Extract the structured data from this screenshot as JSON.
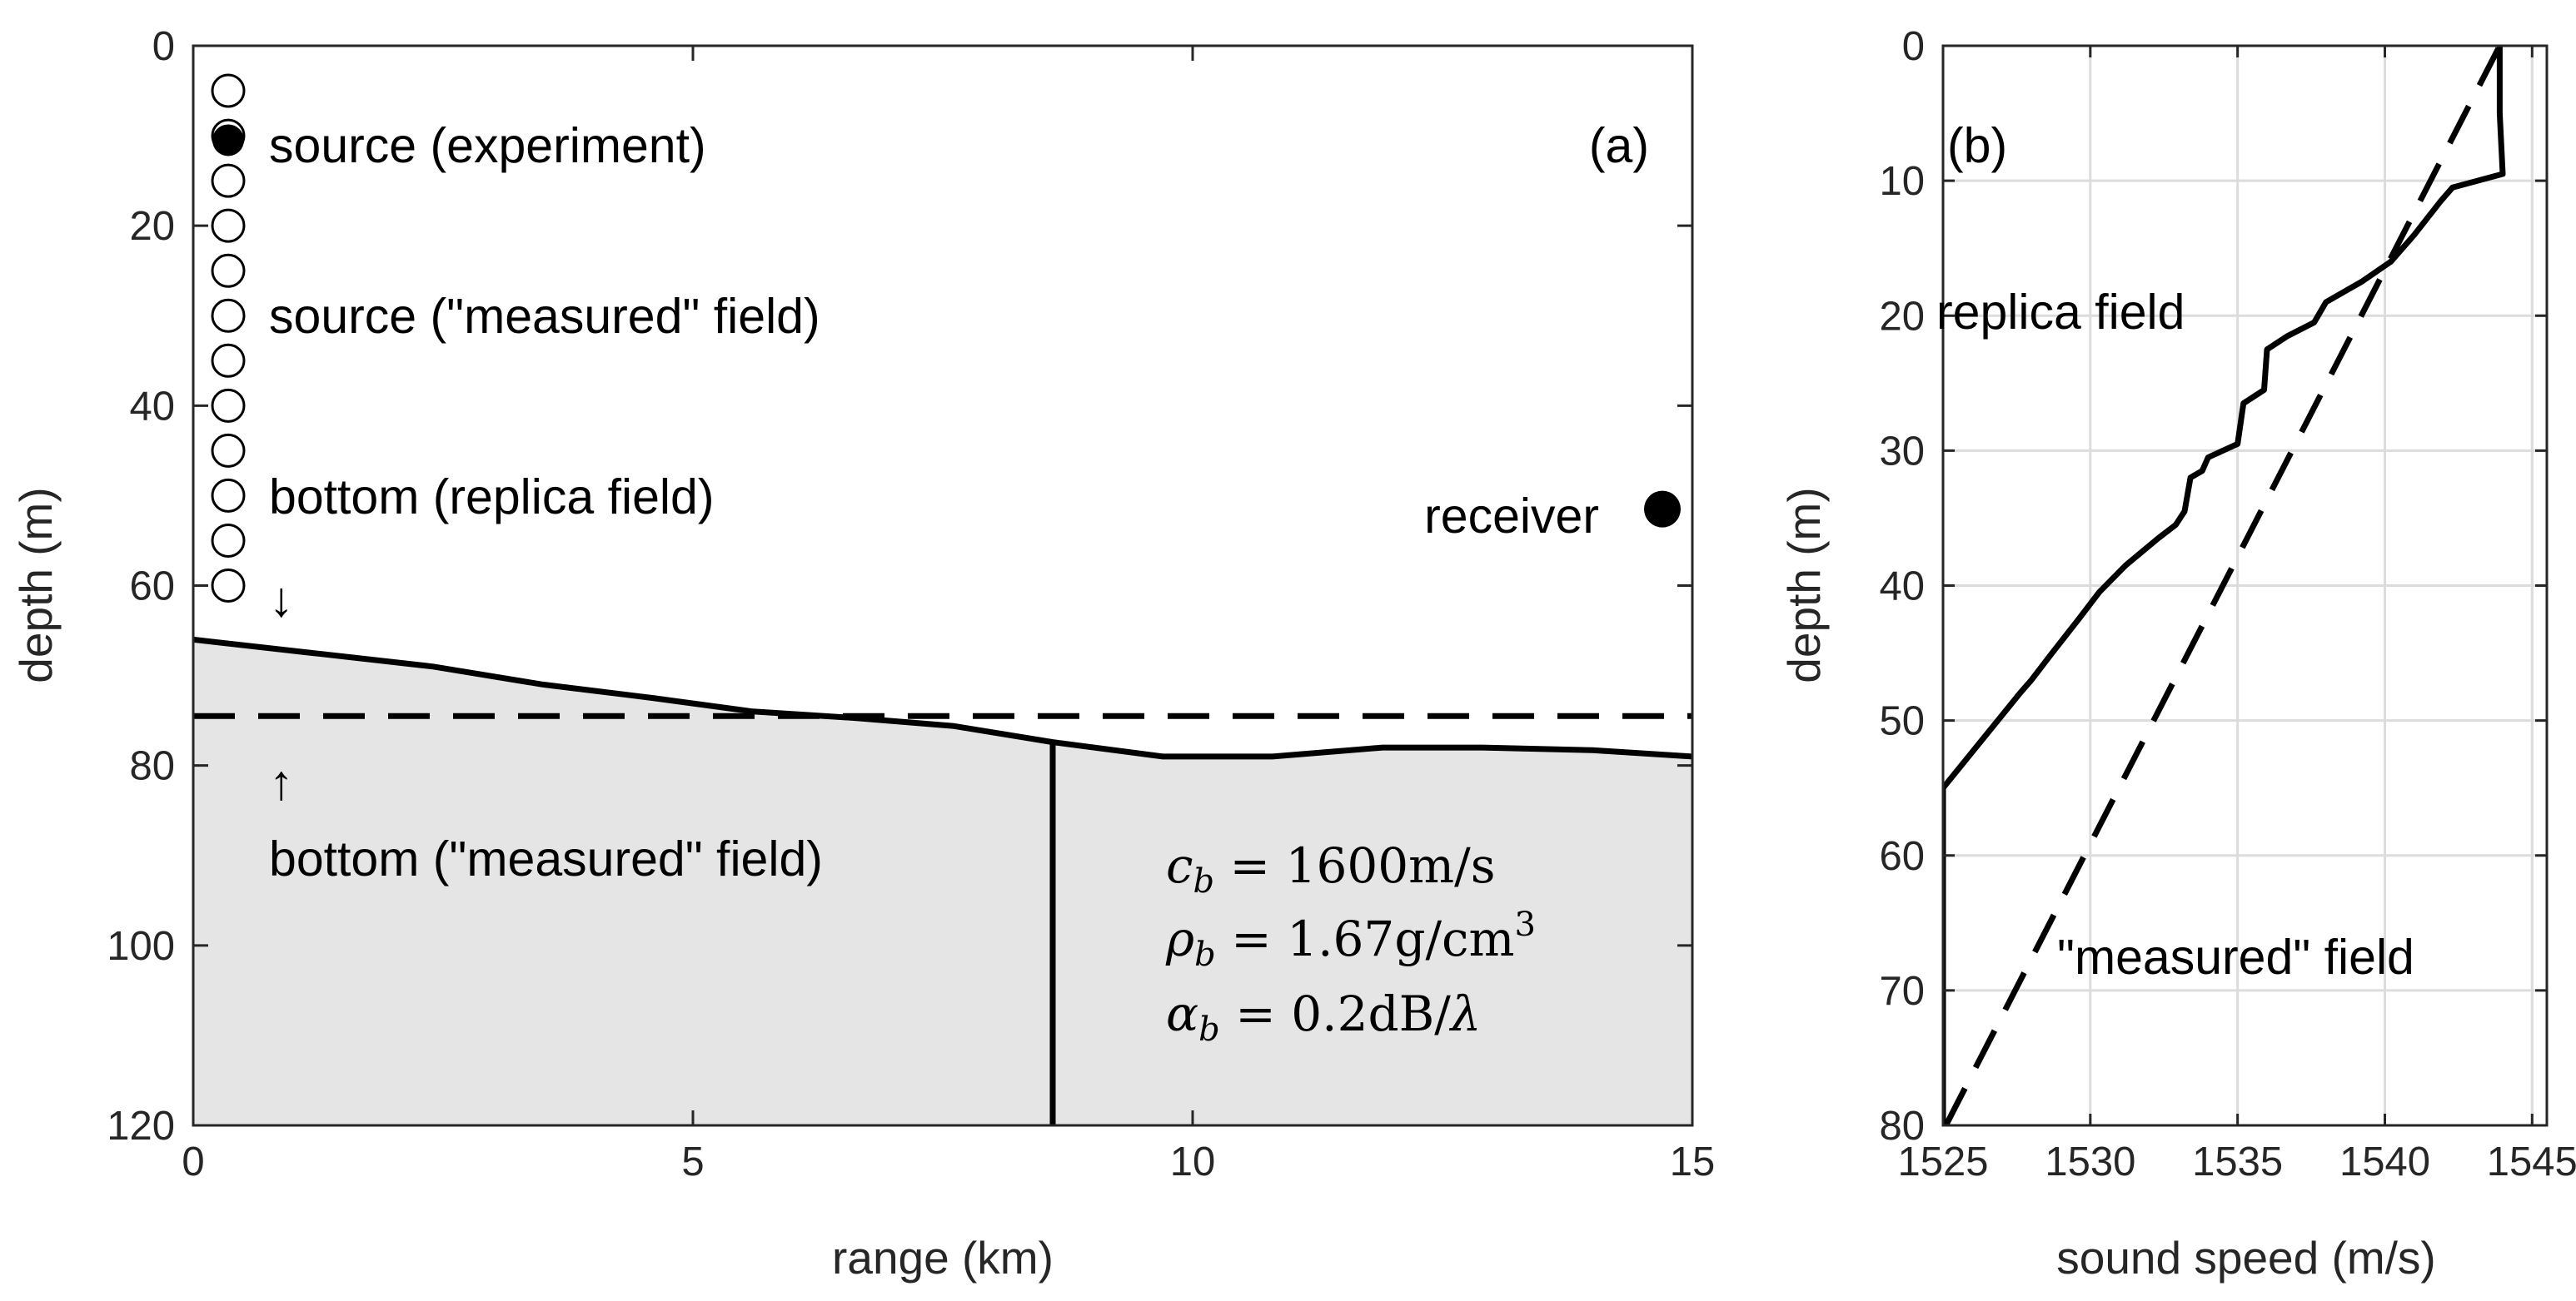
{
  "chart_data": [
    {
      "id": "a",
      "type": "line",
      "panel_label": "(a)",
      "xlabel": "range (km)",
      "ylabel": "depth (m)",
      "xlim": [
        0,
        15
      ],
      "ylim": [
        0,
        120
      ],
      "y_reversed": true,
      "xticks": [
        0,
        5,
        10,
        15
      ],
      "yticks": [
        0,
        20,
        40,
        60,
        80,
        100,
        120
      ],
      "grid": false,
      "series": [
        {
          "name": "bottom (replica field)",
          "style": "solid",
          "fill": "#e5e5e5",
          "x": [
            0,
            1.2,
            2.4,
            3.5,
            4.6,
            5.6,
            6.6,
            7.6,
            8.6,
            9.7,
            10.8,
            11.9,
            12.9,
            14.0,
            15.0
          ],
          "y": [
            66,
            67.5,
            69,
            71,
            72.5,
            74,
            74.7,
            75.6,
            77.4,
            79,
            79,
            78,
            78,
            78.3,
            79
          ]
        },
        {
          "name": "bottom (\"measured\" field)",
          "style": "dashed",
          "x": [
            0,
            15
          ],
          "y": [
            74.5,
            74.5
          ]
        },
        {
          "name": "vertical line",
          "style": "solid",
          "x": [
            8.6,
            8.6
          ],
          "y": [
            77.4,
            120
          ]
        }
      ],
      "sources": {
        "range": 0.35,
        "depths": [
          5,
          10,
          15,
          20,
          25,
          30,
          35,
          40,
          45,
          50,
          55,
          60
        ],
        "experiment_depth": 10.5,
        "experiment_range": 0.35
      },
      "receiver": {
        "range": 14.7,
        "depth": 51.5
      },
      "annotations": {
        "source_experiment": "source (experiment)",
        "source_measured": "source (\"measured\" field)",
        "bottom_replica": "bottom (replica field)",
        "arrow_down": "↓",
        "arrow_up": "↑",
        "bottom_measured": "bottom (\"measured\" field)",
        "receiver": "receiver"
      },
      "bottom_params": {
        "cb_sym": "c",
        "cb_sub": "b",
        "cb_val": " = 1600m/s",
        "rho_sym": "ρ",
        "rho_sub": "b",
        "rho_val": " = 1.67g/cm",
        "rho_sup": "3",
        "alpha_sym": "α",
        "alpha_sub": "b",
        "alpha_val": " = 0.2dB/",
        "alpha_lambda": "λ"
      }
    },
    {
      "id": "b",
      "type": "line",
      "panel_label": "(b)",
      "xlabel": "sound speed (m/s)",
      "ylabel": "depth (m)",
      "xlim": [
        1525,
        1545.5
      ],
      "ylim": [
        0,
        80
      ],
      "y_reversed": true,
      "xticks": [
        1525,
        1530,
        1535,
        1540,
        1545
      ],
      "yticks": [
        0,
        10,
        20,
        30,
        40,
        50,
        60,
        70,
        80
      ],
      "grid": true,
      "series": [
        {
          "name": "replica field",
          "style": "solid",
          "x": [
            1543.9,
            1543.9,
            1544.0,
            1542.3,
            1541.9,
            1541.0,
            1540.2,
            1539.2,
            1538.0,
            1537.6,
            1536.7,
            1536.0,
            1535.9,
            1535.2,
            1535.0,
            1534.0,
            1533.8,
            1533.4,
            1533.2,
            1532.9,
            1532.3,
            1531.2,
            1530.3,
            1529.6,
            1528.7,
            1528.0,
            1527.6,
            1525.0,
            1525.0
          ],
          "y": [
            0,
            5,
            9.5,
            10.5,
            11.5,
            14,
            16,
            17.5,
            19,
            20.5,
            21.5,
            22.5,
            25.5,
            26.5,
            29.5,
            30.5,
            31.5,
            32,
            34.5,
            35.5,
            36.5,
            38.5,
            40.5,
            42.5,
            45,
            47,
            48,
            55,
            80
          ]
        },
        {
          "name": "\"measured\" field",
          "style": "dashed",
          "x": [
            1525.1,
            1543.9
          ],
          "y": [
            80,
            0
          ]
        }
      ],
      "annotations": {
        "replica": "replica field",
        "measured": "\"measured\" field"
      }
    }
  ]
}
